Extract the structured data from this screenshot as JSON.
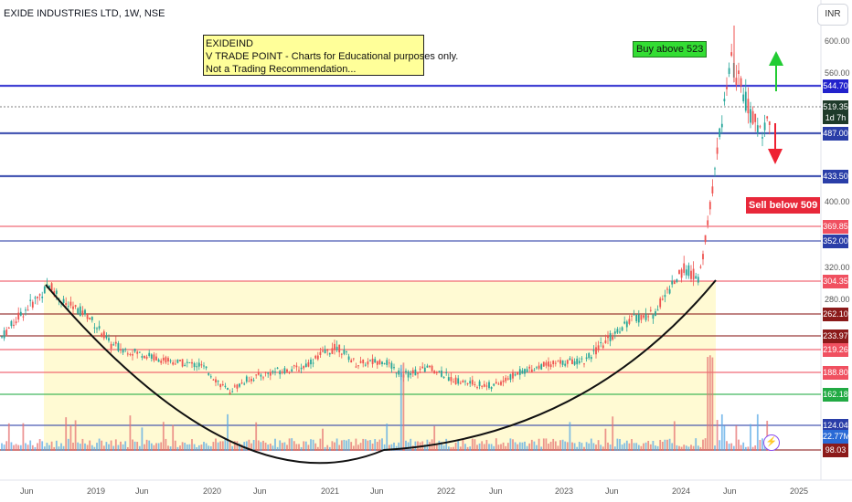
{
  "header": {
    "title": "EXIDE INDUSTRIES LTD, 1W, NSE",
    "currency": "INR"
  },
  "note": {
    "lines": [
      "EXIDEIND",
      "V TRADE POINT - Charts for Educational purposes only.",
      "Not a Trading Recommendation..."
    ]
  },
  "tags": {
    "buy": "Buy above 523",
    "sell": "Sell below 509"
  },
  "chart_data": {
    "type": "candlestick",
    "title": "EXIDE INDUSTRIES LTD, 1W, NSE",
    "currency": "INR",
    "price_scale_ticks": [
      "600.00",
      "560.00",
      "400.00",
      "320.00",
      "280.00"
    ],
    "x_ticks": [
      "Jun",
      "2019",
      "Jun",
      "2020",
      "Jun",
      "2021",
      "Jun",
      "2022",
      "Jun",
      "2023",
      "Jun",
      "2024",
      "Jun",
      "2025"
    ],
    "horizontal_levels": [
      {
        "price": 544.7,
        "label": "544.70",
        "color": "#2222cc"
      },
      {
        "price": 487.0,
        "label": "487.00",
        "color": "#2a3ea8"
      },
      {
        "price": 433.5,
        "label": "433.50",
        "color": "#2a3ea8"
      },
      {
        "price": 369.85,
        "label": "369.85",
        "color": "#f05060"
      },
      {
        "price": 352.0,
        "label": "352.00",
        "color": "#2a3ea8"
      },
      {
        "price": 304.35,
        "label": "304.35",
        "color": "#f05060"
      },
      {
        "price": 262.1,
        "label": "262.10",
        "color": "#8b1a1a"
      },
      {
        "price": 233.97,
        "label": "233.97",
        "color": "#8b1a1a"
      },
      {
        "price": 219.26,
        "label": "219.26",
        "color": "#f05060"
      },
      {
        "price": 188.8,
        "label": "188.80",
        "color": "#f05060"
      },
      {
        "price": 162.18,
        "label": "162.18",
        "color": "#22aa44"
      },
      {
        "price": 124.04,
        "label": "124.04",
        "color": "#2a3ea8"
      },
      {
        "price": 98.03,
        "label": "98.03",
        "color": "#8b1a1a"
      }
    ],
    "current_price": {
      "value": "519.35",
      "countdown": "1d 7h"
    },
    "volume_label": "22.77M",
    "annotations": [
      "Buy above 523",
      "Sell below 509",
      "cup pattern arc",
      "up arrow",
      "down arrow"
    ]
  }
}
